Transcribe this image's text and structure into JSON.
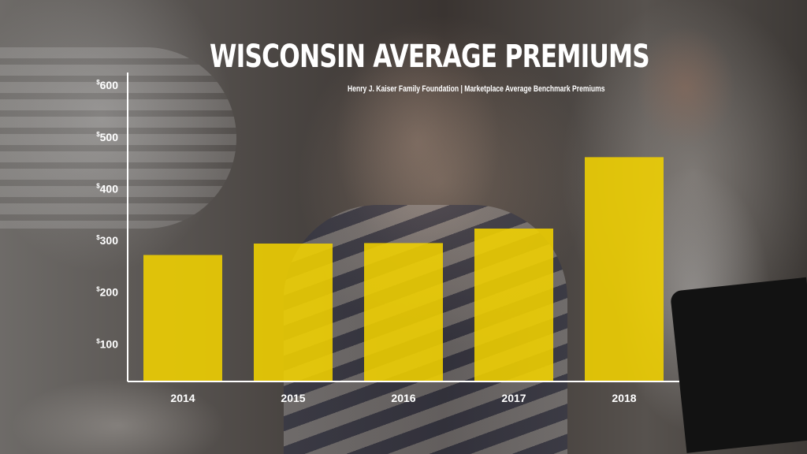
{
  "chart_data": {
    "type": "bar",
    "title": "WISCONSIN AVERAGE PREMIUMS",
    "subtitle": "Henry J. Kaiser Family Foundation  |  Marketplace Average Benchmark Premiums",
    "categories": [
      "2014",
      "2015",
      "2016",
      "2017",
      "2018"
    ],
    "values": [
      272,
      294,
      295,
      323,
      461
    ],
    "ylim": [
      0,
      600
    ],
    "yticks": [
      100,
      200,
      300,
      400,
      500,
      600
    ],
    "ytick_prefix": "$",
    "grid": false,
    "bar_color": "#f1d100",
    "xlabel": "",
    "ylabel": ""
  }
}
